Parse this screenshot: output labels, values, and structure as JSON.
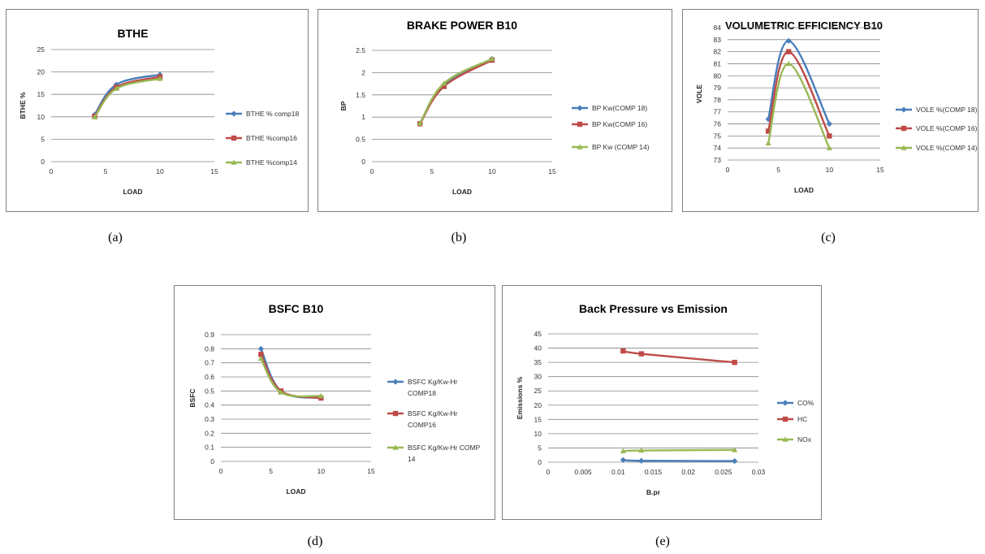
{
  "colors": {
    "series1": "#4a7ebb",
    "series2": "#be4b48",
    "series3": "#98b954",
    "grid": "#868686"
  },
  "chart_data": [
    {
      "type": "line",
      "title": "BTHE",
      "xlabel": "LOAD",
      "ylabel": "BTHE %",
      "xlim": [
        0,
        15
      ],
      "xticks": [
        0,
        5,
        10,
        15
      ],
      "ylim": [
        0,
        25
      ],
      "yticks": [
        0,
        5,
        10,
        15,
        20,
        25
      ],
      "grid": "horizontal",
      "legend": "right",
      "series": [
        {
          "name": "BTHE % comp18",
          "marker": "diamond",
          "x": [
            4,
            6,
            10
          ],
          "y": [
            10.5,
            17.2,
            19.4
          ]
        },
        {
          "name": "BTHE %comp16",
          "marker": "square",
          "x": [
            4,
            6,
            10
          ],
          "y": [
            10.1,
            16.6,
            18.9
          ]
        },
        {
          "name": "BTHE %comp14",
          "marker": "triangle",
          "x": [
            4,
            6,
            10
          ],
          "y": [
            9.9,
            16.3,
            18.5
          ]
        }
      ]
    },
    {
      "type": "line",
      "title": "BRAKE POWER B10",
      "xlabel": "LOAD",
      "ylabel": "BP",
      "xlim": [
        0,
        15
      ],
      "xticks": [
        0,
        5,
        10,
        15
      ],
      "ylim": [
        0,
        2.5
      ],
      "yticks": [
        0,
        0.5,
        1,
        1.5,
        2,
        2.5
      ],
      "grid": "horizontal",
      "legend": "right",
      "series": [
        {
          "name": "BP Kw(COMP 18)",
          "marker": "diamond",
          "x": [
            4,
            6,
            10
          ],
          "y": [
            0.86,
            1.73,
            2.31
          ]
        },
        {
          "name": "BP Kw(COMP 16)",
          "marker": "square",
          "x": [
            4,
            6,
            10
          ],
          "y": [
            0.85,
            1.69,
            2.28
          ]
        },
        {
          "name": "BP Kw (COMP 14)",
          "marker": "triangle",
          "x": [
            4,
            6,
            10
          ],
          "y": [
            0.86,
            1.76,
            2.31
          ]
        }
      ]
    },
    {
      "type": "line",
      "title": "VOLUMETRIC EFFICIENCY B10",
      "xlabel": "LOAD",
      "ylabel": "VOLE",
      "xlim": [
        0,
        15
      ],
      "xticks": [
        0,
        5,
        10,
        15
      ],
      "ylim": [
        73,
        84
      ],
      "yticks": [
        73,
        74,
        75,
        76,
        77,
        78,
        79,
        80,
        81,
        82,
        83,
        84
      ],
      "grid": "horizontal",
      "legend": "right",
      "series": [
        {
          "name": "VOLE %(COMP 18)",
          "marker": "diamond",
          "x": [
            4,
            6,
            10
          ],
          "y": [
            76.4,
            82.9,
            76.0
          ]
        },
        {
          "name": "VOLE %(COMP 16)",
          "marker": "square",
          "x": [
            4,
            6,
            10
          ],
          "y": [
            75.4,
            82.0,
            75.0
          ]
        },
        {
          "name": "VOLE %(COMP 14)",
          "marker": "triangle",
          "x": [
            4,
            6,
            10
          ],
          "y": [
            74.4,
            81.0,
            74.0
          ]
        }
      ]
    },
    {
      "type": "line",
      "title": "BSFC B10",
      "xlabel": "LOAD",
      "ylabel": "BSFC",
      "xlim": [
        0,
        15
      ],
      "xticks": [
        0,
        5,
        10,
        15
      ],
      "ylim": [
        0,
        0.9
      ],
      "yticks": [
        0,
        0.1,
        0.2,
        0.3,
        0.4,
        0.5,
        0.6,
        0.7,
        0.8,
        0.9
      ],
      "grid": "horizontal",
      "legend": "right",
      "series": [
        {
          "name": "BSFC Kg/Kw-Hr COMP18",
          "marker": "diamond",
          "x": [
            4,
            6,
            10
          ],
          "y": [
            0.8,
            0.5,
            0.45
          ]
        },
        {
          "name": "BSFC Kg/Kw-Hr COMP16",
          "marker": "square",
          "x": [
            4,
            6,
            10
          ],
          "y": [
            0.76,
            0.5,
            0.45
          ]
        },
        {
          "name": "BSFC Kg/Kw-Hr COMP 14",
          "marker": "triangle",
          "x": [
            4,
            6,
            10
          ],
          "y": [
            0.73,
            0.49,
            0.465
          ]
        }
      ]
    },
    {
      "type": "line",
      "title": "Back Pressure vs Emission",
      "xlabel": "B.pr",
      "ylabel": "Emissions %",
      "xlim": [
        0,
        0.03
      ],
      "xticks": [
        0,
        0.005,
        0.01,
        0.015,
        0.02,
        0.025,
        0.03
      ],
      "ylim": [
        0,
        45
      ],
      "yticks": [
        0,
        5,
        10,
        15,
        20,
        25,
        30,
        35,
        40,
        45
      ],
      "grid": "horizontal",
      "legend": "right",
      "series": [
        {
          "name": "CO%",
          "marker": "diamond",
          "x": [
            0.0107,
            0.0133,
            0.0266
          ],
          "y": [
            0.8,
            0.5,
            0.4
          ]
        },
        {
          "name": "HC",
          "marker": "square",
          "x": [
            0.0107,
            0.0133,
            0.0266
          ],
          "y": [
            39,
            38,
            35
          ]
        },
        {
          "name": "NOx",
          "marker": "triangle",
          "x": [
            0.0107,
            0.0133,
            0.0266
          ],
          "y": [
            3.9,
            4.1,
            4.3
          ]
        }
      ]
    }
  ],
  "captions": [
    "(a)",
    "(b)",
    "(c)",
    "(d)",
    "(e)"
  ]
}
